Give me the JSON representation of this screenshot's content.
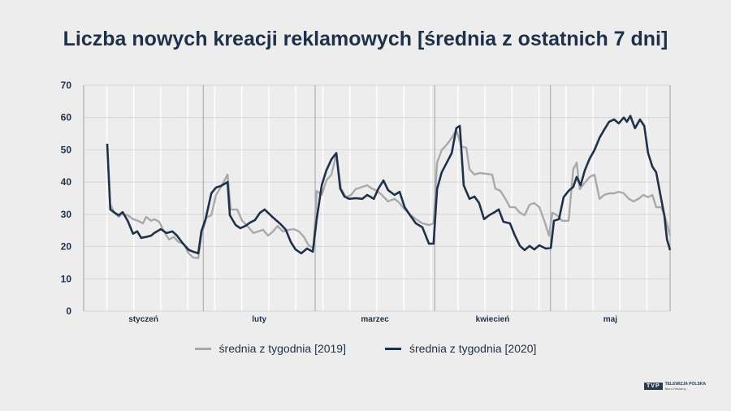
{
  "chart_data": {
    "type": "line",
    "title": "Liczba nowych kreacji reklamowych [średnia z ostatnich 7 dni]",
    "xlabel": "",
    "ylabel": "",
    "xunit": "day of year (Jan 1 = 0)",
    "xlim": [
      0,
      152
    ],
    "ylim": [
      0,
      70
    ],
    "yticks": [
      0,
      10,
      20,
      30,
      40,
      50,
      60,
      70
    ],
    "months": [
      {
        "label": "styczeń",
        "start": 0,
        "end": 31
      },
      {
        "label": "luty",
        "start": 31,
        "end": 60
      },
      {
        "label": "marzec",
        "start": 60,
        "end": 91
      },
      {
        "label": "kwiecień",
        "start": 91,
        "end": 121
      },
      {
        "label": "maj",
        "start": 121,
        "end": 152
      }
    ],
    "legend_position": "bottom",
    "series": [
      {
        "name": "średnia z tygodnia [2019]",
        "color": "#a8a9ab",
        "points": [
          [
            6.9,
            33
          ],
          [
            8,
            30.5
          ],
          [
            9.1,
            29.2
          ],
          [
            10.1,
            30.2
          ],
          [
            11.4,
            29.7
          ],
          [
            12.8,
            28.5
          ],
          [
            14.1,
            28
          ],
          [
            15.4,
            27.2
          ],
          [
            16.2,
            29.2
          ],
          [
            17.5,
            28
          ],
          [
            18.3,
            28.5
          ],
          [
            19.6,
            27.7
          ],
          [
            20.8,
            24.7
          ],
          [
            22.1,
            22.2
          ],
          [
            23.4,
            23
          ],
          [
            24.6,
            21.4
          ],
          [
            25.9,
            20.9
          ],
          [
            27.2,
            17.9
          ],
          [
            28.4,
            16.6
          ],
          [
            29.7,
            16.4
          ],
          [
            30.5,
            23.4
          ],
          [
            31.8,
            29
          ],
          [
            33.1,
            29.7
          ],
          [
            34.3,
            36
          ],
          [
            35.6,
            38.5
          ],
          [
            37.3,
            42.3
          ],
          [
            38.1,
            31.5
          ],
          [
            39.8,
            31.5
          ],
          [
            41.1,
            28
          ],
          [
            42.7,
            26
          ],
          [
            44,
            24.2
          ],
          [
            45.3,
            24.7
          ],
          [
            46.5,
            25.2
          ],
          [
            47.8,
            23.4
          ],
          [
            49.1,
            24.7
          ],
          [
            50.3,
            26.4
          ],
          [
            51.6,
            24.7
          ],
          [
            53.3,
            25.2
          ],
          [
            54.5,
            25.4
          ],
          [
            55.8,
            24.7
          ],
          [
            57.1,
            23
          ],
          [
            58.3,
            20.4
          ],
          [
            59.6,
            19.6
          ],
          [
            60.4,
            37.3
          ],
          [
            61.7,
            36
          ],
          [
            62.9,
            40.5
          ],
          [
            64.2,
            42.3
          ],
          [
            65.5,
            48.6
          ],
          [
            66.7,
            38
          ],
          [
            68,
            35.3
          ],
          [
            69.3,
            36
          ],
          [
            70.5,
            37.8
          ],
          [
            72.2,
            38.5
          ],
          [
            73.5,
            39
          ],
          [
            74.7,
            38
          ],
          [
            76,
            37.3
          ],
          [
            77.3,
            36
          ],
          [
            78.9,
            34
          ],
          [
            80.6,
            34.8
          ],
          [
            81.9,
            33.5
          ],
          [
            83.2,
            31.5
          ],
          [
            84.8,
            29.7
          ],
          [
            86.1,
            28.5
          ],
          [
            87.8,
            27.2
          ],
          [
            89.5,
            26.7
          ],
          [
            90.7,
            27.2
          ],
          [
            91.6,
            46
          ],
          [
            92.8,
            49.9
          ],
          [
            94.1,
            51.6
          ],
          [
            95.4,
            53.7
          ],
          [
            96.6,
            56.2
          ],
          [
            97.9,
            51.1
          ],
          [
            99.2,
            50.6
          ],
          [
            100,
            44
          ],
          [
            101.3,
            42.3
          ],
          [
            102.5,
            42.8
          ],
          [
            104.2,
            42.6
          ],
          [
            105.9,
            42.3
          ],
          [
            106.7,
            38
          ],
          [
            108,
            37.3
          ],
          [
            109.3,
            34.8
          ],
          [
            110.5,
            32.2
          ],
          [
            111.8,
            32.2
          ],
          [
            113.1,
            30.5
          ],
          [
            114.3,
            29.7
          ],
          [
            115.6,
            33
          ],
          [
            116.8,
            33.5
          ],
          [
            118.1,
            32.2
          ],
          [
            119.4,
            28
          ],
          [
            120.6,
            23.4
          ],
          [
            121.5,
            30.5
          ],
          [
            122.7,
            29.7
          ],
          [
            124,
            28
          ],
          [
            125.7,
            28
          ],
          [
            126.9,
            44
          ],
          [
            127.8,
            46
          ],
          [
            128.6,
            37.8
          ],
          [
            129.9,
            39.8
          ],
          [
            131.2,
            41.6
          ],
          [
            132.4,
            42.3
          ],
          [
            133.7,
            34.8
          ],
          [
            134.9,
            36
          ],
          [
            136.2,
            36.5
          ],
          [
            137.5,
            36.5
          ],
          [
            138.7,
            37
          ],
          [
            140,
            36.5
          ],
          [
            141.3,
            34.8
          ],
          [
            142.5,
            34
          ],
          [
            143.8,
            34.8
          ],
          [
            145.1,
            36
          ],
          [
            146.3,
            35.3
          ],
          [
            147.4,
            36
          ],
          [
            148.4,
            32.2
          ],
          [
            149.7,
            32.2
          ],
          [
            150.9,
            28.5
          ],
          [
            152,
            23.4
          ]
        ]
      },
      {
        "name": "średnia z tygodnia [2020]",
        "color": "#1e3148",
        "points": [
          [
            6.1,
            51.9
          ],
          [
            6.9,
            31.5
          ],
          [
            8,
            30.5
          ],
          [
            9.1,
            29.7
          ],
          [
            10.1,
            30.7
          ],
          [
            11.4,
            28
          ],
          [
            12.8,
            24
          ],
          [
            13.9,
            24.7
          ],
          [
            14.9,
            22.7
          ],
          [
            16.2,
            23
          ],
          [
            17.5,
            23.4
          ],
          [
            18.3,
            24.2
          ],
          [
            20,
            25.4
          ],
          [
            21.5,
            24.2
          ],
          [
            23,
            24.7
          ],
          [
            24.2,
            23.4
          ],
          [
            25.7,
            21
          ],
          [
            27.2,
            19
          ],
          [
            28.4,
            18.4
          ],
          [
            29.7,
            17.9
          ],
          [
            30.5,
            24.7
          ],
          [
            31.6,
            28.5
          ],
          [
            33.1,
            36.5
          ],
          [
            34.3,
            38.3
          ],
          [
            35.6,
            38.8
          ],
          [
            37.3,
            40
          ],
          [
            37.9,
            29.7
          ],
          [
            39.4,
            26.7
          ],
          [
            40.6,
            25.7
          ],
          [
            41.9,
            26.4
          ],
          [
            43.2,
            27.5
          ],
          [
            44.4,
            28.2
          ],
          [
            45.7,
            30.5
          ],
          [
            46.9,
            31.5
          ],
          [
            49.1,
            29
          ],
          [
            51,
            27
          ],
          [
            52.4,
            25.2
          ],
          [
            53.7,
            21.4
          ],
          [
            54.9,
            19.1
          ],
          [
            56.4,
            17.9
          ],
          [
            57.9,
            19.4
          ],
          [
            59.4,
            18.4
          ],
          [
            60.4,
            28.5
          ],
          [
            61.7,
            39
          ],
          [
            62.9,
            43.6
          ],
          [
            64.2,
            47
          ],
          [
            65.5,
            49
          ],
          [
            66.5,
            38
          ],
          [
            67.6,
            35.5
          ],
          [
            68.8,
            34.8
          ],
          [
            70.5,
            35
          ],
          [
            72.2,
            34.8
          ],
          [
            73.5,
            36
          ],
          [
            75.2,
            34.8
          ],
          [
            76.4,
            38
          ],
          [
            77.7,
            40.5
          ],
          [
            78.9,
            37.5
          ],
          [
            80.6,
            36
          ],
          [
            81.9,
            37
          ],
          [
            83.2,
            32.2
          ],
          [
            84.6,
            29.7
          ],
          [
            86.1,
            27.2
          ],
          [
            87.8,
            26
          ],
          [
            89.5,
            20.9
          ],
          [
            90.7,
            20.9
          ],
          [
            91.6,
            37.8
          ],
          [
            92.8,
            43
          ],
          [
            94.1,
            46
          ],
          [
            95.4,
            49
          ],
          [
            96.6,
            56.7
          ],
          [
            97.5,
            57.4
          ],
          [
            98.5,
            39
          ],
          [
            100,
            34.8
          ],
          [
            101.3,
            35.5
          ],
          [
            102.5,
            33.5
          ],
          [
            103.8,
            28.5
          ],
          [
            105.1,
            29.7
          ],
          [
            106.3,
            30.5
          ],
          [
            107.6,
            31.5
          ],
          [
            108.8,
            27.7
          ],
          [
            110.5,
            27.2
          ],
          [
            111.8,
            23.4
          ],
          [
            113.1,
            20.2
          ],
          [
            114.3,
            18.9
          ],
          [
            115.6,
            20.2
          ],
          [
            116.8,
            19.1
          ],
          [
            118.1,
            20.4
          ],
          [
            119.8,
            19.4
          ],
          [
            121.1,
            19.6
          ],
          [
            121.9,
            28
          ],
          [
            123.2,
            28.5
          ],
          [
            124.4,
            35.3
          ],
          [
            125.7,
            37.3
          ],
          [
            126.9,
            38.5
          ],
          [
            127.8,
            41.6
          ],
          [
            128.8,
            39
          ],
          [
            129.9,
            43.6
          ],
          [
            131.2,
            47.4
          ],
          [
            132.4,
            49.9
          ],
          [
            133.7,
            53.7
          ],
          [
            134.9,
            56.2
          ],
          [
            136.2,
            58.7
          ],
          [
            137.5,
            59.4
          ],
          [
            138.7,
            58.2
          ],
          [
            140,
            60
          ],
          [
            140.8,
            58.7
          ],
          [
            141.7,
            60.5
          ],
          [
            142.9,
            56.7
          ],
          [
            144.2,
            59.4
          ],
          [
            145.3,
            57.4
          ],
          [
            146.3,
            49
          ],
          [
            147.4,
            44.8
          ],
          [
            148.4,
            43
          ],
          [
            149.5,
            36
          ],
          [
            150.5,
            29.7
          ],
          [
            151.2,
            22.2
          ],
          [
            152,
            18.9
          ]
        ]
      }
    ]
  },
  "logo": {
    "box": "TVP",
    "line1": "TELEWIZJA POLSKA",
    "line2": "Biuro Reklamy"
  }
}
